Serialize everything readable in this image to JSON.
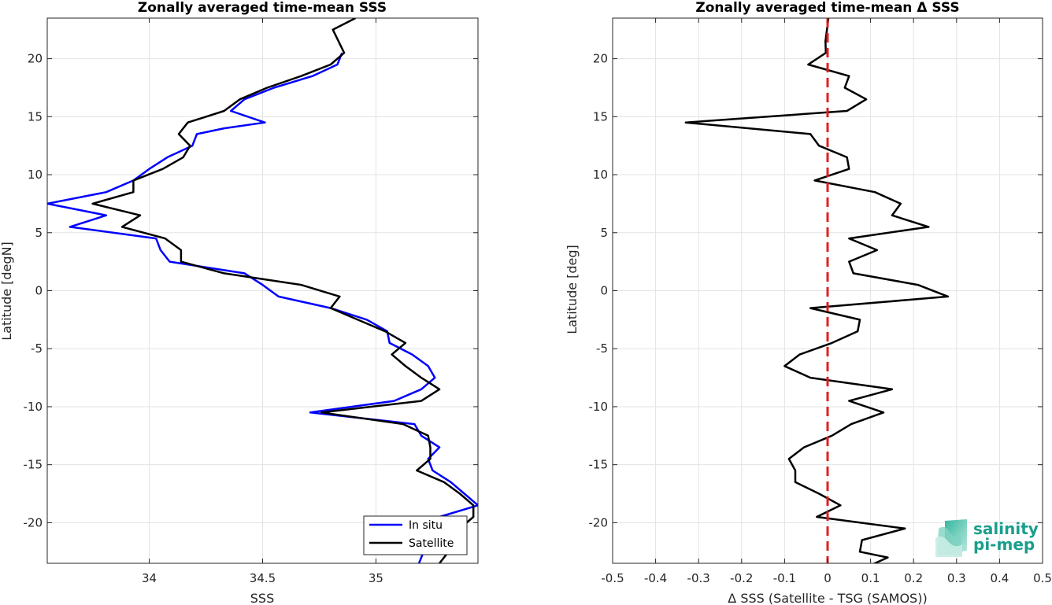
{
  "chart_data": [
    {
      "type": "line",
      "title": "Zonally averaged time-mean SSS",
      "xlabel": "SSS",
      "ylabel": "Latitude [degN]",
      "xlim": [
        33.55,
        35.45
      ],
      "ylim": [
        -23.5,
        23.5
      ],
      "xticks": [
        34,
        34.5,
        35
      ],
      "xtick_labels": [
        "34",
        "34.5",
        "35"
      ],
      "yticks": [
        -20,
        -15,
        -10,
        -5,
        0,
        5,
        10,
        15,
        20
      ],
      "ytick_labels": [
        "-20",
        "-15",
        "-10",
        "-5",
        "0",
        "5",
        "10",
        "15",
        "20"
      ],
      "grid": true,
      "legend_position": "bottom-right",
      "series": [
        {
          "name": "In situ",
          "color": "#0000ff",
          "points": [
            [
              34.85,
              20.5
            ],
            [
              34.83,
              19.5
            ],
            [
              34.72,
              18.5
            ],
            [
              34.55,
              17.5
            ],
            [
              34.42,
              16.5
            ],
            [
              34.36,
              15.5
            ],
            [
              34.51,
              14.5
            ],
            [
              34.33,
              14.0
            ],
            [
              34.21,
              13.5
            ],
            [
              34.19,
              12.5
            ],
            [
              34.08,
              11.5
            ],
            [
              34.0,
              10.5
            ],
            [
              33.93,
              9.5
            ],
            [
              33.81,
              8.5
            ],
            [
              33.55,
              7.5
            ],
            [
              33.81,
              6.5
            ],
            [
              33.65,
              5.5
            ],
            [
              34.03,
              4.5
            ],
            [
              34.05,
              3.5
            ],
            [
              34.09,
              2.5
            ],
            [
              34.42,
              1.5
            ],
            [
              34.5,
              0.5
            ],
            [
              34.57,
              -0.5
            ],
            [
              34.8,
              -1.5
            ],
            [
              34.96,
              -2.5
            ],
            [
              35.05,
              -3.5
            ],
            [
              35.06,
              -4.5
            ],
            [
              35.16,
              -5.5
            ],
            [
              35.23,
              -6.5
            ],
            [
              35.26,
              -7.5
            ],
            [
              35.2,
              -8.5
            ],
            [
              35.08,
              -9.5
            ],
            [
              34.71,
              -10.5
            ],
            [
              35.17,
              -11.5
            ],
            [
              35.2,
              -12.5
            ],
            [
              35.28,
              -13.5
            ],
            [
              35.23,
              -14.5
            ],
            [
              35.25,
              -15.5
            ],
            [
              35.33,
              -16.5
            ],
            [
              35.39,
              -17.5
            ],
            [
              35.45,
              -18.5
            ],
            [
              35.28,
              -19.5
            ],
            [
              35.17,
              -20.5
            ],
            [
              35.21,
              -22.5
            ],
            [
              35.19,
              -23.5
            ]
          ]
        },
        {
          "name": "Satellite",
          "color": "#000000",
          "points": [
            [
              34.91,
              23.5
            ],
            [
              34.81,
              22.5
            ],
            [
              34.86,
              20.5
            ],
            [
              34.8,
              19.5
            ],
            [
              34.67,
              18.5
            ],
            [
              34.52,
              17.5
            ],
            [
              34.4,
              16.5
            ],
            [
              34.33,
              15.5
            ],
            [
              34.17,
              14.5
            ],
            [
              34.13,
              13.5
            ],
            [
              34.18,
              12.5
            ],
            [
              34.15,
              11.5
            ],
            [
              34.06,
              10.5
            ],
            [
              33.93,
              9.5
            ],
            [
              33.93,
              8.5
            ],
            [
              33.75,
              7.5
            ],
            [
              33.96,
              6.5
            ],
            [
              33.88,
              5.5
            ],
            [
              34.07,
              4.5
            ],
            [
              34.14,
              3.5
            ],
            [
              34.14,
              2.5
            ],
            [
              34.33,
              1.5
            ],
            [
              34.67,
              0.5
            ],
            [
              34.84,
              -0.5
            ],
            [
              34.8,
              -1.5
            ],
            [
              35.04,
              -3.5
            ],
            [
              35.13,
              -4.5
            ],
            [
              35.07,
              -5.5
            ],
            [
              35.13,
              -6.5
            ],
            [
              35.2,
              -7.5
            ],
            [
              35.28,
              -8.5
            ],
            [
              35.2,
              -9.5
            ],
            [
              34.76,
              -10.5
            ],
            [
              35.12,
              -11.5
            ],
            [
              35.23,
              -12.5
            ],
            [
              35.24,
              -13.5
            ],
            [
              35.24,
              -14.5
            ],
            [
              35.18,
              -15.5
            ],
            [
              35.3,
              -16.5
            ],
            [
              35.37,
              -17.5
            ],
            [
              35.43,
              -18.5
            ],
            [
              35.43,
              -19.5
            ],
            [
              35.31,
              -21.5
            ],
            [
              35.32,
              -22.5
            ],
            [
              35.28,
              -23.5
            ]
          ]
        }
      ]
    },
    {
      "type": "line",
      "title": "Zonally averaged time-mean Δ SSS",
      "xlabel": "Δ SSS (Satellite - TSG (SAMOS))",
      "ylabel": "Latitude [deg]",
      "xlim": [
        -0.5,
        0.5
      ],
      "ylim": [
        -23.5,
        23.5
      ],
      "xticks": [
        -0.5,
        -0.4,
        -0.3,
        -0.2,
        -0.1,
        0,
        0.1,
        0.2,
        0.3,
        0.4,
        0.5
      ],
      "xtick_labels": [
        "-0.5",
        "-0.4",
        "-0.3",
        "-0.2",
        "-0.1",
        "0",
        "0.1",
        "0.2",
        "0.3",
        "0.4",
        "0.5"
      ],
      "yticks": [
        -20,
        -15,
        -10,
        -5,
        0,
        5,
        10,
        15,
        20
      ],
      "ytick_labels": [
        "-20",
        "-15",
        "-10",
        "-5",
        "0",
        "5",
        "10",
        "15",
        "20"
      ],
      "grid": true,
      "reference_line": {
        "x": 0,
        "color": "#e02020",
        "style": "dashed"
      },
      "series": [
        {
          "color": "#000000",
          "points": [
            [
              0.002,
              23.5
            ],
            [
              -0.005,
              21.5
            ],
            [
              -0.004,
              20.5
            ],
            [
              -0.045,
              19.5
            ],
            [
              0.05,
              18.5
            ],
            [
              0.04,
              17.5
            ],
            [
              0.09,
              16.5
            ],
            [
              0.045,
              15.5
            ],
            [
              -0.33,
              14.5
            ],
            [
              -0.04,
              13.5
            ],
            [
              -0.02,
              12.5
            ],
            [
              0.045,
              11.5
            ],
            [
              0.05,
              10.5
            ],
            [
              -0.03,
              9.5
            ],
            [
              0.11,
              8.5
            ],
            [
              0.17,
              7.5
            ],
            [
              0.15,
              6.5
            ],
            [
              0.235,
              5.5
            ],
            [
              0.05,
              4.5
            ],
            [
              0.115,
              3.5
            ],
            [
              0.05,
              2.5
            ],
            [
              0.06,
              1.5
            ],
            [
              0.21,
              0.5
            ],
            [
              0.28,
              -0.5
            ],
            [
              -0.04,
              -1.5
            ],
            [
              0.075,
              -2.5
            ],
            [
              0.07,
              -3.5
            ],
            [
              0.01,
              -4.5
            ],
            [
              -0.065,
              -5.5
            ],
            [
              -0.1,
              -6.5
            ],
            [
              -0.04,
              -7.5
            ],
            [
              0.15,
              -8.5
            ],
            [
              0.05,
              -9.5
            ],
            [
              0.13,
              -10.5
            ],
            [
              0.055,
              -11.5
            ],
            [
              0.01,
              -12.5
            ],
            [
              -0.055,
              -13.5
            ],
            [
              -0.09,
              -14.5
            ],
            [
              -0.075,
              -15.5
            ],
            [
              -0.075,
              -16.5
            ],
            [
              -0.02,
              -17.5
            ],
            [
              0.03,
              -18.5
            ],
            [
              -0.025,
              -19.5
            ],
            [
              0.18,
              -20.5
            ],
            [
              0.08,
              -21.5
            ],
            [
              0.075,
              -22.5
            ],
            [
              0.14,
              -23.0
            ],
            [
              0.08,
              -24.0
            ]
          ]
        }
      ]
    }
  ],
  "legend": {
    "items": [
      "In situ",
      "Satellite"
    ]
  },
  "logo": {
    "line1": "salinity",
    "line2": "pi-mep"
  }
}
